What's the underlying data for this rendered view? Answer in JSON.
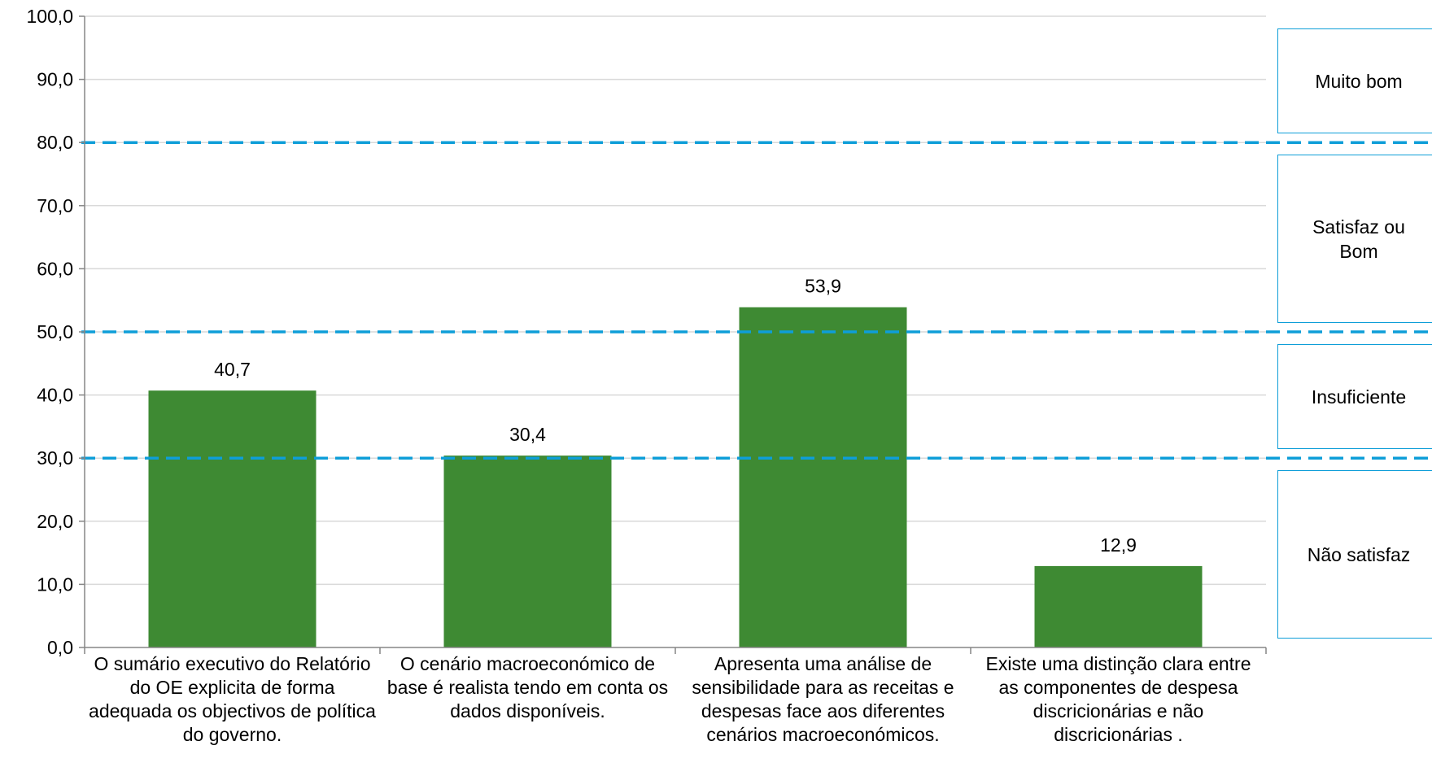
{
  "chart_data": {
    "type": "bar",
    "categories": [
      "O sumário executivo do Relatório do OE explicita de forma adequada os objectivos de política do governo.",
      "O cenário macroeconómico de base é realista tendo em conta os dados disponíveis.",
      "Apresenta uma análise de sensibilidade para as receitas e despesas face aos diferentes cenários macroeconómicos.",
      "Existe uma distinção clara entre as componentes de despesa discricionárias e não discricionárias ."
    ],
    "values": [
      40.7,
      30.4,
      53.9,
      12.9
    ],
    "value_labels": [
      "40,7",
      "30,4",
      "53,9",
      "12,9"
    ],
    "y_ticks": [
      "0,0",
      "10,0",
      "20,0",
      "30,0",
      "40,0",
      "50,0",
      "60,0",
      "70,0",
      "80,0",
      "90,0",
      "100,0"
    ],
    "ylim": [
      0,
      100
    ],
    "grid": true,
    "threshold_lines": [
      30,
      50,
      80
    ],
    "bands": [
      {
        "label": "Muito bom",
        "from": 80,
        "to": 100
      },
      {
        "label": "Satisfaz ou Bom",
        "from": 50,
        "to": 80
      },
      {
        "label": "Insuficiente",
        "from": 30,
        "to": 50
      },
      {
        "label": "Não satisfaz",
        "from": 0,
        "to": 30
      }
    ],
    "colors": {
      "bar": "#3E8A33",
      "threshold": "#0E9ED8",
      "grid": "#D9D9D9",
      "axis": "#868686"
    }
  }
}
